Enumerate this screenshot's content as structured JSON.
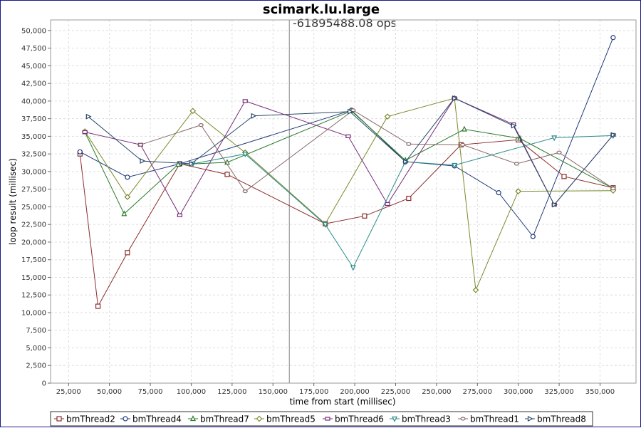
{
  "chart_data": {
    "type": "line",
    "title": "scimark.lu.large",
    "subtitle": "-61895488.08 ops",
    "xlabel": "time from start (millisec)",
    "ylabel": "loop result (millisec)",
    "xlim": [
      14000,
      372000
    ],
    "ylim": [
      0,
      51500
    ],
    "xticks": [
      25000,
      50000,
      75000,
      100000,
      125000,
      150000,
      175000,
      200000,
      225000,
      250000,
      275000,
      300000,
      325000,
      350000
    ],
    "xtick_labels": [
      "25,000",
      "50,000",
      "75,000",
      "100,000",
      "125,000",
      "150,000",
      "175,000",
      "200,000",
      "225,000",
      "250,000",
      "275,000",
      "300,000",
      "325,000",
      "350,000"
    ],
    "yticks": [
      0,
      2500,
      5000,
      7500,
      10000,
      12500,
      15000,
      17500,
      20000,
      22500,
      25000,
      27500,
      30000,
      32500,
      35000,
      37500,
      40000,
      42500,
      45000,
      47500,
      50000
    ],
    "ytick_labels": [
      "0",
      "2,500",
      "5,000",
      "7,500",
      "10,000",
      "12,500",
      "15,000",
      "17,500",
      "20,000",
      "22,500",
      "25,000",
      "27,500",
      "30,000",
      "32,500",
      "35,000",
      "37,500",
      "40,000",
      "42,500",
      "45,000",
      "47,500",
      "50,000"
    ],
    "marker_line_x": 160000,
    "grid": true,
    "legend_position": "bottom",
    "series": [
      {
        "name": "bmThread2",
        "color": "#8b2e2e",
        "marker": "square",
        "x": [
          32000,
          43000,
          61000,
          93000,
          122000,
          182000,
          206000,
          233000,
          265000,
          300000,
          328000,
          358000
        ],
        "y": [
          32500,
          10900,
          18500,
          31100,
          29600,
          22600,
          23700,
          26200,
          33800,
          34500,
          29300,
          27700
        ]
      },
      {
        "name": "bmThread4",
        "color": "#1f3a7a",
        "marker": "circle",
        "x": [
          32000,
          61000,
          93000,
          198000,
          231000,
          261000,
          288000,
          309000,
          358000
        ],
        "y": [
          32800,
          29200,
          31100,
          38700,
          31400,
          30800,
          27000,
          20800,
          49000
        ]
      },
      {
        "name": "bmThread7",
        "color": "#2a7a2a",
        "marker": "triangle-up",
        "x": [
          35000,
          59000,
          92000,
          122000,
          198000,
          231000,
          267000,
          301000,
          358000
        ],
        "y": [
          35600,
          24000,
          31000,
          31300,
          38600,
          31600,
          36000,
          34700,
          27600
        ]
      },
      {
        "name": "bmThread5",
        "color": "#7a8a2a",
        "marker": "diamond",
        "x": [
          35000,
          61000,
          101000,
          133000,
          182000,
          220000,
          261000,
          274000,
          300000,
          358000
        ],
        "y": [
          35700,
          26400,
          38600,
          32700,
          22600,
          37800,
          40400,
          13200,
          27200,
          27300
        ]
      },
      {
        "name": "bmThread6",
        "color": "#7a2a7a",
        "marker": "rect-h",
        "x": [
          35000,
          69000,
          93000,
          133000,
          196000,
          220000,
          261000,
          297000,
          322000,
          358000
        ],
        "y": [
          35600,
          33800,
          23800,
          40000,
          35000,
          25400,
          40400,
          36700,
          25300,
          35200
        ]
      },
      {
        "name": "bmThread3",
        "color": "#2a8a8a",
        "marker": "triangle-down",
        "x": [
          101000,
          133000,
          182000,
          199000,
          231000,
          261000,
          322000,
          358000
        ],
        "y": [
          31100,
          32500,
          22500,
          16400,
          31400,
          30900,
          34800,
          35100
        ]
      },
      {
        "name": "bmThread1",
        "color": "#8a6a6a",
        "marker": "circle-small",
        "x": [
          69000,
          106000,
          133000,
          199000,
          233000,
          266000,
          299000,
          325000,
          358000
        ],
        "y": [
          33800,
          36600,
          27200,
          38700,
          33900,
          33800,
          31100,
          32700,
          27600
        ]
      },
      {
        "name": "bmThread8",
        "color": "#2a4a6a",
        "marker": "triangle-right",
        "x": [
          37000,
          70000,
          100000,
          138000,
          197000,
          231000,
          261000,
          297000,
          322000,
          358000
        ],
        "y": [
          37800,
          31500,
          31100,
          37900,
          38500,
          31400,
          40400,
          36500,
          25300,
          35200
        ]
      }
    ]
  }
}
